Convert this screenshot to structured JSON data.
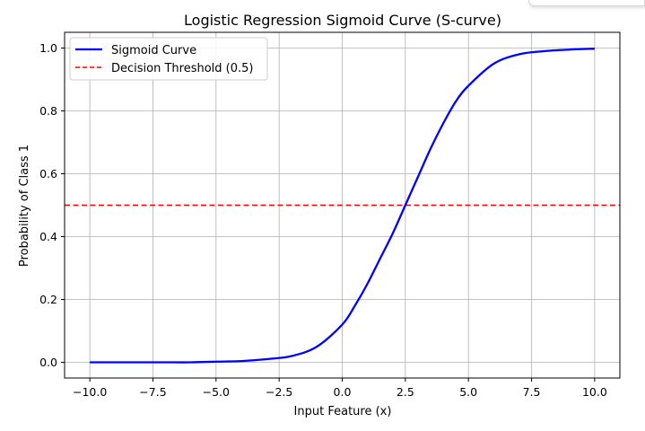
{
  "chart_data": {
    "type": "line",
    "title": "Logistic Regression Sigmoid Curve (S-curve)",
    "xlabel": "Input Feature (x)",
    "ylabel": "Probability of Class 1",
    "xlim": [
      -11.0,
      11.0
    ],
    "ylim": [
      -0.05,
      1.05
    ],
    "xticks": [
      -10,
      -7.5,
      -5,
      -2.5,
      0,
      2.5,
      5,
      7.5,
      10
    ],
    "xtick_labels": [
      "−10.0",
      "−7.5",
      "−5.0",
      "−2.5",
      "0.0",
      "2.5",
      "5.0",
      "7.5",
      "10.0"
    ],
    "yticks": [
      0,
      0.2,
      0.4,
      0.6,
      0.8,
      1.0
    ],
    "ytick_labels": [
      "0.0",
      "0.2",
      "0.4",
      "0.6",
      "0.8",
      "1.0"
    ],
    "grid": true,
    "legend_position": "top-left",
    "series": [
      {
        "name": "Sigmoid Curve",
        "color": "#0000ff",
        "style": "solid",
        "x": [
          -10,
          -9,
          -8,
          -7,
          -6,
          -5,
          -4,
          -3,
          -2,
          -1,
          0,
          0.5,
          1,
          1.5,
          2,
          2.5,
          3,
          3.5,
          4,
          4.5,
          5,
          6,
          7,
          8,
          9,
          10
        ],
        "y": [
          0.0,
          0.0,
          0.0,
          0.0,
          0.0,
          0.002,
          0.004,
          0.01,
          0.02,
          0.05,
          0.12,
          0.18,
          0.25,
          0.33,
          0.41,
          0.5,
          0.59,
          0.68,
          0.76,
          0.83,
          0.88,
          0.95,
          0.98,
          0.99,
          0.995,
          0.998
        ]
      },
      {
        "name": "Decision Threshold (0.5)",
        "color": "#ff0000",
        "style": "dashed",
        "y_constant": 0.5
      }
    ]
  }
}
